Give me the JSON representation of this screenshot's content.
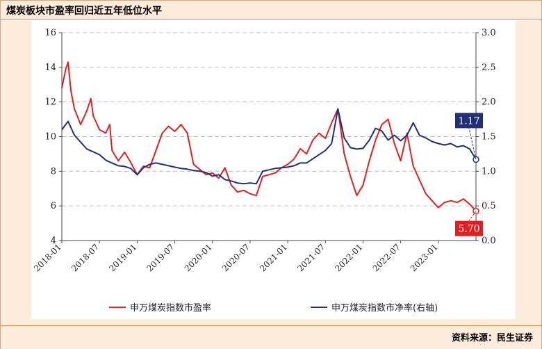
{
  "title": "煤炭板块市盈率回归近五年低位水平",
  "source": "资料来源：民生证券",
  "chart_data": {
    "type": "line",
    "x_tick_labels": [
      "2018-01",
      "2018-07",
      "2019-01",
      "2019-07",
      "2020-01",
      "2020-07",
      "2021-01",
      "2021-07",
      "2022-01",
      "2022-07",
      "2023-01"
    ],
    "xlim": [
      "2018-01",
      "2023-07"
    ],
    "left_axis": {
      "ylim": [
        4,
        16
      ],
      "ticks": [
        "4",
        "6",
        "8",
        "10",
        "12",
        "14",
        "16"
      ]
    },
    "right_axis": {
      "ylim": [
        0.0,
        3.0
      ],
      "ticks": [
        "0.0",
        "0.5",
        "1.0",
        "1.5",
        "2.0",
        "2.5",
        "3.0"
      ]
    },
    "grid": "horizontal dashed",
    "legend_position": "bottom",
    "series": [
      {
        "name": "申万煤炭指数市盈率",
        "axis": "left",
        "color": "#e02020",
        "points": [
          [
            "2018-01",
            12.8
          ],
          [
            "2018-01-20",
            13.9
          ],
          [
            "2018-02",
            14.3
          ],
          [
            "2018-02-15",
            12.6
          ],
          [
            "2018-03",
            11.6
          ],
          [
            "2018-04",
            10.7
          ],
          [
            "2018-05",
            11.5
          ],
          [
            "2018-05-20",
            12.2
          ],
          [
            "2018-06",
            11.2
          ],
          [
            "2018-07",
            10.4
          ],
          [
            "2018-08",
            10.2
          ],
          [
            "2018-08-20",
            10.7
          ],
          [
            "2018-09",
            9.2
          ],
          [
            "2018-10",
            8.6
          ],
          [
            "2018-11",
            9.1
          ],
          [
            "2018-12",
            8.5
          ],
          [
            "2019-01",
            7.8
          ],
          [
            "2019-02",
            8.3
          ],
          [
            "2019-03",
            8.2
          ],
          [
            "2019-04",
            9.2
          ],
          [
            "2019-05",
            10.2
          ],
          [
            "2019-06",
            10.6
          ],
          [
            "2019-07",
            10.3
          ],
          [
            "2019-08",
            10.7
          ],
          [
            "2019-09",
            10.2
          ],
          [
            "2019-10",
            8.4
          ],
          [
            "2019-11",
            8.1
          ],
          [
            "2019-12",
            7.8
          ],
          [
            "2020-01",
            7.9
          ],
          [
            "2020-02",
            7.6
          ],
          [
            "2020-03",
            8.2
          ],
          [
            "2020-04",
            7.2
          ],
          [
            "2020-05",
            6.8
          ],
          [
            "2020-06",
            6.9
          ],
          [
            "2020-07",
            6.7
          ],
          [
            "2020-08",
            6.6
          ],
          [
            "2020-09",
            7.7
          ],
          [
            "2020-10",
            7.8
          ],
          [
            "2020-11",
            7.9
          ],
          [
            "2020-12",
            8.2
          ],
          [
            "2021-01",
            8.4
          ],
          [
            "2021-02",
            8.7
          ],
          [
            "2021-03",
            9.3
          ],
          [
            "2021-04",
            9.0
          ],
          [
            "2021-05",
            9.8
          ],
          [
            "2021-06",
            10.2
          ],
          [
            "2021-07",
            9.9
          ],
          [
            "2021-08",
            10.8
          ],
          [
            "2021-09",
            11.6
          ],
          [
            "2021-10",
            9.0
          ],
          [
            "2021-11",
            7.7
          ],
          [
            "2021-12",
            6.6
          ],
          [
            "2022-01",
            7.2
          ],
          [
            "2022-02",
            8.6
          ],
          [
            "2022-03",
            9.8
          ],
          [
            "2022-04",
            10.7
          ],
          [
            "2022-05",
            11.0
          ],
          [
            "2022-06",
            9.6
          ],
          [
            "2022-07",
            8.6
          ],
          [
            "2022-08",
            10.2
          ],
          [
            "2022-09",
            8.3
          ],
          [
            "2022-10",
            7.5
          ],
          [
            "2022-11",
            6.7
          ],
          [
            "2022-12",
            6.3
          ],
          [
            "2023-01",
            5.9
          ],
          [
            "2023-02",
            6.2
          ],
          [
            "2023-03",
            6.3
          ],
          [
            "2023-04",
            6.2
          ],
          [
            "2023-05",
            6.4
          ],
          [
            "2023-06",
            6.1
          ],
          [
            "2023-07",
            5.7
          ]
        ]
      },
      {
        "name": "申万煤炭指数市净率(右轴)",
        "axis": "right",
        "color": "#1f2f7a",
        "points": [
          [
            "2018-01",
            1.6
          ],
          [
            "2018-02",
            1.72
          ],
          [
            "2018-03",
            1.52
          ],
          [
            "2018-04",
            1.42
          ],
          [
            "2018-05",
            1.32
          ],
          [
            "2018-06",
            1.28
          ],
          [
            "2018-07",
            1.24
          ],
          [
            "2018-08",
            1.16
          ],
          [
            "2018-09",
            1.12
          ],
          [
            "2018-10",
            1.08
          ],
          [
            "2018-11",
            1.07
          ],
          [
            "2018-12",
            1.04
          ],
          [
            "2019-01",
            0.95
          ],
          [
            "2019-02",
            1.05
          ],
          [
            "2019-03",
            1.1
          ],
          [
            "2019-04",
            1.12
          ],
          [
            "2019-05",
            1.1
          ],
          [
            "2019-06",
            1.08
          ],
          [
            "2019-07",
            1.06
          ],
          [
            "2019-08",
            1.04
          ],
          [
            "2019-09",
            1.03
          ],
          [
            "2019-10",
            1.01
          ],
          [
            "2019-11",
            1.0
          ],
          [
            "2019-12",
            0.98
          ],
          [
            "2020-01",
            0.93
          ],
          [
            "2020-02",
            0.95
          ],
          [
            "2020-03",
            0.88
          ],
          [
            "2020-04",
            0.86
          ],
          [
            "2020-05",
            0.83
          ],
          [
            "2020-06",
            0.82
          ],
          [
            "2020-07",
            0.83
          ],
          [
            "2020-08",
            0.82
          ],
          [
            "2020-09",
            1.0
          ],
          [
            "2020-10",
            1.02
          ],
          [
            "2020-11",
            1.04
          ],
          [
            "2020-12",
            1.05
          ],
          [
            "2021-01",
            1.06
          ],
          [
            "2021-02",
            1.08
          ],
          [
            "2021-03",
            1.12
          ],
          [
            "2021-04",
            1.12
          ],
          [
            "2021-05",
            1.18
          ],
          [
            "2021-06",
            1.24
          ],
          [
            "2021-07",
            1.3
          ],
          [
            "2021-08",
            1.4
          ],
          [
            "2021-09",
            1.9
          ],
          [
            "2021-10",
            1.48
          ],
          [
            "2021-11",
            1.34
          ],
          [
            "2021-12",
            1.32
          ],
          [
            "2022-01",
            1.33
          ],
          [
            "2022-02",
            1.45
          ],
          [
            "2022-03",
            1.62
          ],
          [
            "2022-04",
            1.58
          ],
          [
            "2022-05",
            1.45
          ],
          [
            "2022-06",
            1.52
          ],
          [
            "2022-07",
            1.44
          ],
          [
            "2022-08",
            1.52
          ],
          [
            "2022-09",
            1.7
          ],
          [
            "2022-10",
            1.52
          ],
          [
            "2022-11",
            1.48
          ],
          [
            "2022-12",
            1.43
          ],
          [
            "2023-01",
            1.4
          ],
          [
            "2023-02",
            1.38
          ],
          [
            "2023-03",
            1.4
          ],
          [
            "2023-04",
            1.35
          ],
          [
            "2023-05",
            1.37
          ],
          [
            "2023-06",
            1.32
          ],
          [
            "2023-07",
            1.17
          ]
        ]
      }
    ],
    "callouts": [
      {
        "series": 1,
        "label": "1.17",
        "color": "#1f2f7a"
      },
      {
        "series": 0,
        "label": "5.70",
        "color": "#e02020"
      }
    ]
  }
}
